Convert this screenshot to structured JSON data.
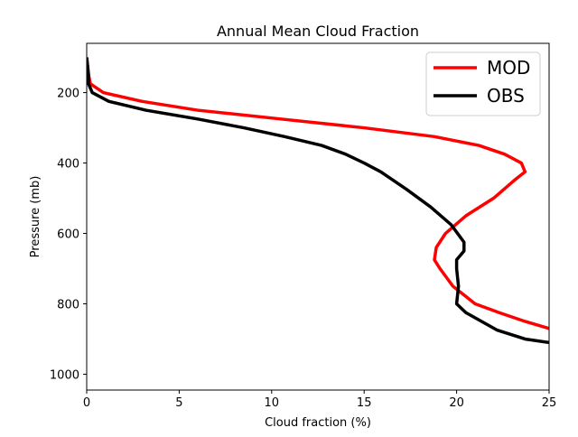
{
  "chart_data": {
    "type": "line",
    "title": "Annual Mean Cloud Fraction",
    "xlabel": "Cloud fraction (%)",
    "ylabel": "Pressure (mb)",
    "xlim": [
      0,
      25
    ],
    "ylim": [
      1045,
      60
    ],
    "y_inverted": true,
    "xticks": [
      0,
      5,
      10,
      15,
      20,
      25
    ],
    "yticks": [
      200,
      400,
      600,
      800,
      1000
    ],
    "grid": false,
    "legend_position": "top-right",
    "series": [
      {
        "name": "MOD",
        "color": "#ff0000",
        "points": [
          [
            0.0,
            100
          ],
          [
            0.1,
            150
          ],
          [
            0.2,
            175
          ],
          [
            0.9,
            200
          ],
          [
            3.0,
            225
          ],
          [
            6.0,
            250
          ],
          [
            10.5,
            275
          ],
          [
            15.0,
            300
          ],
          [
            18.8,
            325
          ],
          [
            21.2,
            350
          ],
          [
            22.6,
            375
          ],
          [
            23.5,
            400
          ],
          [
            23.7,
            425
          ],
          [
            23.1,
            450
          ],
          [
            22.0,
            500
          ],
          [
            20.5,
            550
          ],
          [
            19.4,
            600
          ],
          [
            18.9,
            640
          ],
          [
            18.8,
            675
          ],
          [
            19.1,
            700
          ],
          [
            19.8,
            750
          ],
          [
            21.0,
            800
          ],
          [
            22.3,
            825
          ],
          [
            23.7,
            850
          ],
          [
            25.0,
            870
          ]
        ]
      },
      {
        "name": "OBS",
        "color": "#000000",
        "points": [
          [
            0.0,
            100
          ],
          [
            0.1,
            150
          ],
          [
            0.1,
            175
          ],
          [
            0.3,
            200
          ],
          [
            1.2,
            225
          ],
          [
            3.2,
            250
          ],
          [
            6.0,
            275
          ],
          [
            8.5,
            300
          ],
          [
            10.7,
            325
          ],
          [
            12.7,
            350
          ],
          [
            14.0,
            375
          ],
          [
            15.0,
            400
          ],
          [
            15.9,
            425
          ],
          [
            16.6,
            450
          ],
          [
            17.3,
            475
          ],
          [
            18.6,
            525
          ],
          [
            19.7,
            575
          ],
          [
            20.4,
            625
          ],
          [
            20.4,
            650
          ],
          [
            20.0,
            675
          ],
          [
            20.0,
            700
          ],
          [
            20.1,
            750
          ],
          [
            20.0,
            800
          ],
          [
            20.5,
            825
          ],
          [
            22.2,
            875
          ],
          [
            23.7,
            900
          ],
          [
            25.0,
            910
          ]
        ]
      }
    ]
  }
}
